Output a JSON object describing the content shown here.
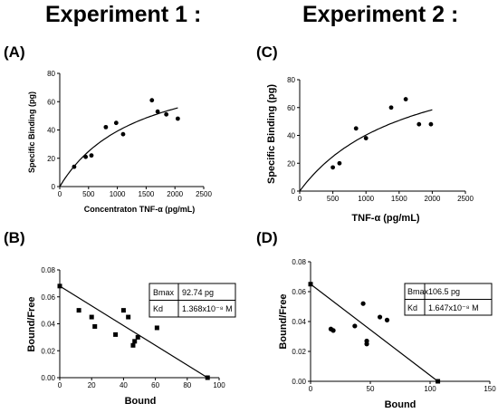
{
  "titles": {
    "experiment1": "Experiment 1 :",
    "experiment2": "Experiment 2 :"
  },
  "panel_labels": {
    "A": "(A)",
    "B": "(B)",
    "C": "(C)",
    "D": "(D)"
  },
  "tables": {
    "B": {
      "bmax_label": "Bmax",
      "bmax_value": "92.74 pg",
      "kd_label": "Kd",
      "kd_value": "1.368x10⁻⁸ M"
    },
    "D": {
      "bmax_label": "Bmax",
      "bmax_value": "106.5 pg",
      "kd_label": "Kd",
      "kd_value": "1.647x10⁻⁸ M"
    }
  },
  "chart_data": [
    {
      "id": "A",
      "type": "scatter",
      "xlabel": "Concentraton TNF-α (pg/mL)",
      "ylabel": "Specific Binding (pg)",
      "xlim": [
        0,
        2500
      ],
      "ylim": [
        0,
        80
      ],
      "xticks": [
        0,
        500,
        1000,
        1500,
        2000,
        2500
      ],
      "yticks": [
        0,
        20,
        40,
        60,
        80
      ],
      "points": [
        [
          250,
          14
        ],
        [
          450,
          21
        ],
        [
          550,
          22
        ],
        [
          800,
          42
        ],
        [
          980,
          45
        ],
        [
          1100,
          37
        ],
        [
          1600,
          61
        ],
        [
          1700,
          53
        ],
        [
          1850,
          51
        ],
        [
          2050,
          48
        ]
      ],
      "fit": {
        "model": "one-site",
        "bmax": 92.74,
        "kd": 1368,
        "x_range": [
          0,
          2050
        ]
      }
    },
    {
      "id": "B",
      "type": "scatter",
      "xlabel": "Bound",
      "ylabel": "Bound/Free",
      "xlim": [
        0,
        100
      ],
      "ylim": [
        0,
        0.08
      ],
      "xticks": [
        0,
        20,
        40,
        60,
        80,
        100
      ],
      "yticks": [
        0.0,
        0.02,
        0.04,
        0.06,
        0.08
      ],
      "points": [
        [
          0,
          0.068
        ],
        [
          12,
          0.05
        ],
        [
          20,
          0.045
        ],
        [
          22,
          0.038
        ],
        [
          35,
          0.032
        ],
        [
          40,
          0.05
        ],
        [
          43,
          0.045
        ],
        [
          46,
          0.024
        ],
        [
          47,
          0.027
        ],
        [
          49,
          0.03
        ],
        [
          61,
          0.037
        ],
        [
          92.74,
          0
        ]
      ],
      "line": [
        [
          0,
          0.068
        ],
        [
          92.74,
          0
        ]
      ]
    },
    {
      "id": "C",
      "type": "scatter",
      "xlabel": "TNF-α (pg/mL)",
      "ylabel": "Specific Binding (pg)",
      "xlim": [
        0,
        2500
      ],
      "ylim": [
        0,
        80
      ],
      "xticks": [
        0,
        500,
        1000,
        1500,
        2000,
        2500
      ],
      "yticks": [
        0,
        20,
        40,
        60,
        80
      ],
      "points": [
        [
          500,
          17
        ],
        [
          600,
          20
        ],
        [
          850,
          45
        ],
        [
          1000,
          38
        ],
        [
          1380,
          60
        ],
        [
          1600,
          66
        ],
        [
          1800,
          48
        ],
        [
          1980,
          48
        ]
      ],
      "fit": {
        "model": "one-site",
        "bmax": 106.5,
        "kd": 1647,
        "x_range": [
          0,
          2000
        ]
      }
    },
    {
      "id": "D",
      "type": "scatter",
      "xlabel": "Bound",
      "ylabel": "Bound/Free",
      "xlim": [
        0,
        150
      ],
      "ylim": [
        0,
        0.08
      ],
      "xticks": [
        0,
        50,
        100,
        150
      ],
      "yticks": [
        0.0,
        0.02,
        0.04,
        0.06,
        0.08
      ],
      "points": [
        [
          0,
          0.065
        ],
        [
          17,
          0.035
        ],
        [
          19,
          0.034
        ],
        [
          37,
          0.037
        ],
        [
          44,
          0.052
        ],
        [
          47,
          0.027
        ],
        [
          47,
          0.025
        ],
        [
          58,
          0.043
        ],
        [
          64,
          0.041
        ],
        [
          106.5,
          0
        ]
      ],
      "line": [
        [
          0,
          0.065
        ],
        [
          106.5,
          0
        ]
      ]
    }
  ]
}
